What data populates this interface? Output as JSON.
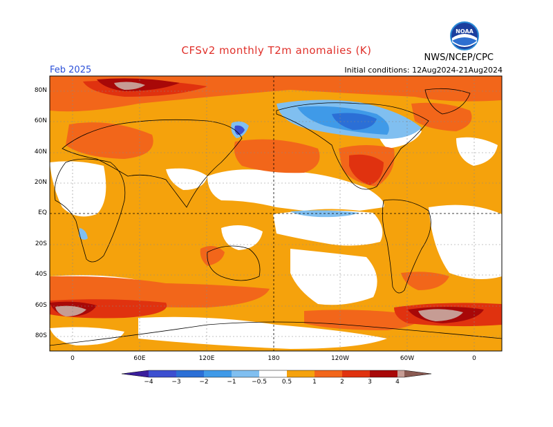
{
  "header": {
    "title": "CFSv2 monthly T2m anomalies (K)",
    "organization": "NWS/NCEP/CPC",
    "month": "Feb 2025",
    "initial_conditions": "Initial conditions: 12Aug2024-21Aug2024",
    "logo_text": "NOAA"
  },
  "axes": {
    "lat_labels": [
      "80N",
      "60N",
      "40N",
      "20N",
      "EQ",
      "20S",
      "40S",
      "60S",
      "80S"
    ],
    "lon_labels": [
      "0",
      "60E",
      "120E",
      "180",
      "120W",
      "60W",
      "0"
    ]
  },
  "colorbar": {
    "labels": [
      "−4",
      "−3",
      "−2",
      "−1",
      "−0.5",
      "0.5",
      "1",
      "2",
      "3",
      "4"
    ],
    "colors": [
      "#3a1e9c",
      "#3c4fd0",
      "#2b6fd6",
      "#3f9ae8",
      "#80bff0",
      "#ffffff",
      "#f5a20c",
      "#f2661a",
      "#e0320f",
      "#a80808",
      "#c69c94",
      "#8a5a52"
    ]
  },
  "map_colors": {
    "ocean_neutral": "#ffffff",
    "warm_05_1": "#f5a20c",
    "warm_1_2": "#f2661a",
    "warm_2_3": "#e0320f",
    "warm_3_4": "#a80808",
    "warm_4_plus": "#c69c94",
    "cold_05_1": "#80bff0",
    "cold_1_2": "#3f9ae8",
    "cold_2_3": "#2b6fd6",
    "cold_3_4": "#3c4fd0"
  }
}
